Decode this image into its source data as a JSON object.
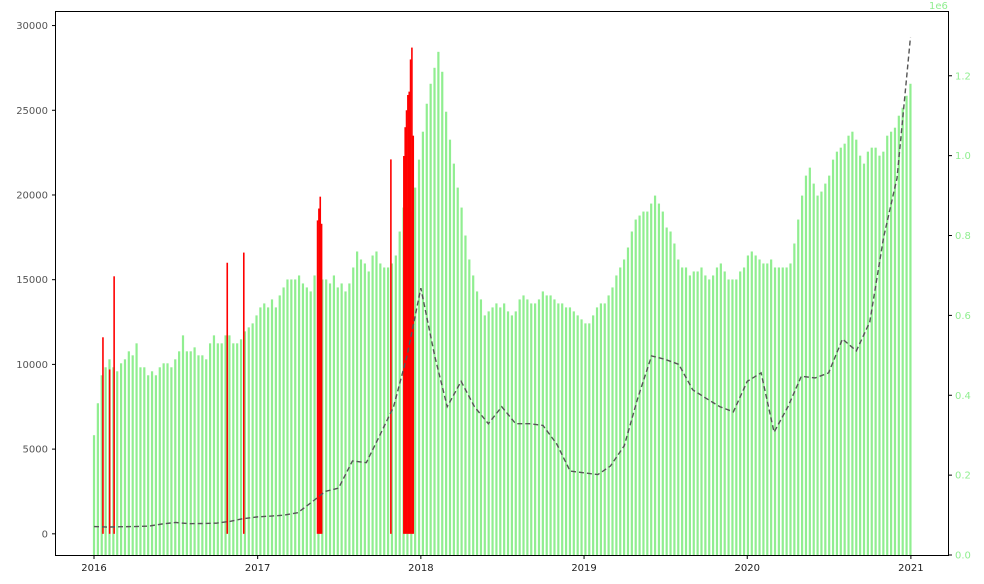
{
  "chart_data": {
    "type": "bar",
    "title": "",
    "xlabel": "",
    "ylabel": "",
    "x_range": [
      "2015-10-08",
      "2021-03-25"
    ],
    "left_axis": {
      "ylim": [
        -1250,
        30800
      ],
      "ticks": [
        0,
        5000,
        10000,
        15000,
        20000,
        25000,
        30000
      ],
      "tick_labels": [
        "0",
        "5000",
        "10000",
        "15000",
        "20000",
        "25000",
        "30000"
      ],
      "tick_color": "#555555"
    },
    "right_axis": {
      "ylim": [
        0,
        1.3597
      ],
      "ticks": [
        0.0,
        0.2,
        0.4,
        0.6,
        0.8,
        1.0,
        1.2
      ],
      "tick_labels": [
        "0.0",
        "0.2",
        "0.4",
        "0.6",
        "0.8",
        "1.0",
        "1.2"
      ],
      "offset_label": "1e6",
      "tick_color": "#90ee90"
    },
    "x_axis": {
      "ticks": [
        "2016-01-01",
        "2017-01-01",
        "2018-01-01",
        "2019-01-01",
        "2020-01-01",
        "2021-01-01"
      ],
      "tick_labels": [
        "2016",
        "2017",
        "2018",
        "2019",
        "2020",
        "2021"
      ]
    },
    "grid": false,
    "legend": "none",
    "colors": {
      "volume": "#90ee90",
      "price_up": "#ff0000",
      "price_line": "#555555"
    },
    "series": [
      {
        "type": "bar",
        "axis": "right",
        "color": "#90ee90",
        "x_start": "2016-01-01",
        "x_end": "2020-12-31",
        "values_1e6": [
          0.3,
          0.38,
          0.45,
          0.47,
          0.49,
          0.47,
          0.46,
          0.48,
          0.49,
          0.51,
          0.5,
          0.53,
          0.47,
          0.47,
          0.45,
          0.46,
          0.45,
          0.47,
          0.48,
          0.48,
          0.47,
          0.49,
          0.51,
          0.55,
          0.51,
          0.51,
          0.52,
          0.5,
          0.5,
          0.49,
          0.53,
          0.55,
          0.53,
          0.53,
          0.55,
          0.55,
          0.53,
          0.53,
          0.54,
          0.56,
          0.57,
          0.58,
          0.6,
          0.62,
          0.63,
          0.62,
          0.64,
          0.62,
          0.65,
          0.67,
          0.69,
          0.69,
          0.69,
          0.7,
          0.68,
          0.67,
          0.66,
          0.7,
          0.7,
          0.69,
          0.69,
          0.68,
          0.7,
          0.67,
          0.68,
          0.66,
          0.68,
          0.72,
          0.76,
          0.74,
          0.73,
          0.71,
          0.75,
          0.76,
          0.73,
          0.72,
          0.72,
          0.73,
          0.75,
          0.81,
          0.87,
          0.87,
          0.86,
          0.92,
          0.99,
          1.06,
          1.13,
          1.18,
          1.22,
          1.26,
          1.21,
          1.11,
          1.04,
          0.98,
          0.92,
          0.87,
          0.8,
          0.74,
          0.7,
          0.66,
          0.64,
          0.6,
          0.61,
          0.62,
          0.63,
          0.62,
          0.63,
          0.61,
          0.6,
          0.61,
          0.64,
          0.65,
          0.64,
          0.63,
          0.63,
          0.64,
          0.66,
          0.65,
          0.65,
          0.64,
          0.63,
          0.63,
          0.62,
          0.62,
          0.61,
          0.6,
          0.59,
          0.58,
          0.58,
          0.6,
          0.62,
          0.63,
          0.63,
          0.65,
          0.67,
          0.7,
          0.72,
          0.74,
          0.77,
          0.81,
          0.84,
          0.85,
          0.86,
          0.86,
          0.88,
          0.9,
          0.88,
          0.86,
          0.82,
          0.81,
          0.78,
          0.74,
          0.72,
          0.72,
          0.7,
          0.71,
          0.71,
          0.72,
          0.7,
          0.69,
          0.7,
          0.72,
          0.73,
          0.71,
          0.69,
          0.69,
          0.69,
          0.71,
          0.72,
          0.75,
          0.76,
          0.75,
          0.74,
          0.73,
          0.73,
          0.74,
          0.72,
          0.72,
          0.72,
          0.72,
          0.73,
          0.78,
          0.84,
          0.9,
          0.95,
          0.97,
          0.93,
          0.9,
          0.91,
          0.93,
          0.95,
          0.99,
          1.01,
          1.02,
          1.03,
          1.05,
          1.06,
          1.04,
          1.0,
          0.98,
          1.01,
          1.02,
          1.02,
          1.0,
          1.01,
          1.05,
          1.06,
          1.07,
          1.1,
          1.12,
          1.15,
          1.18
        ]
      },
      {
        "type": "line",
        "axis": "left",
        "name": "",
        "style": "dashed",
        "color": "#555555",
        "x": [
          "2016-01-01",
          "2016-02-01",
          "2016-03-01",
          "2016-04-01",
          "2016-05-01",
          "2016-06-01",
          "2016-07-01",
          "2016-08-01",
          "2016-09-01",
          "2016-10-01",
          "2016-11-01",
          "2016-12-01",
          "2017-01-01",
          "2017-02-01",
          "2017-03-01",
          "2017-04-01",
          "2017-05-01",
          "2017-06-01",
          "2017-07-01",
          "2017-08-01",
          "2017-09-01",
          "2017-10-01",
          "2017-11-01",
          "2017-12-01",
          "2018-01-01",
          "2018-02-01",
          "2018-03-01",
          "2018-04-01",
          "2018-05-01",
          "2018-06-01",
          "2018-07-01",
          "2018-08-01",
          "2018-09-01",
          "2018-10-01",
          "2018-11-01",
          "2018-12-01",
          "2019-01-01",
          "2019-02-01",
          "2019-03-01",
          "2019-04-01",
          "2019-05-01",
          "2019-06-01",
          "2019-07-01",
          "2019-08-01",
          "2019-09-01",
          "2019-10-01",
          "2019-11-01",
          "2019-12-01",
          "2020-01-01",
          "2020-02-01",
          "2020-03-01",
          "2020-04-01",
          "2020-05-01",
          "2020-06-01",
          "2020-07-01",
          "2020-08-01",
          "2020-09-01",
          "2020-10-01",
          "2020-11-01",
          "2020-12-01",
          "2020-12-31"
        ],
        "values": [
          430,
          400,
          420,
          430,
          450,
          580,
          670,
          600,
          610,
          630,
          740,
          900,
          1000,
          1050,
          1100,
          1250,
          1850,
          2500,
          2700,
          4300,
          4200,
          5800,
          7500,
          10500,
          14500,
          10500,
          7500,
          9000,
          7500,
          6500,
          7500,
          6500,
          6500,
          6400,
          5300,
          3700,
          3600,
          3500,
          4000,
          5200,
          8000,
          10500,
          10300,
          10000,
          8500,
          8000,
          7500,
          7200,
          9000,
          9500,
          6000,
          7500,
          9300,
          9200,
          9500,
          11500,
          10800,
          12500,
          17500,
          21000,
          29300
        ]
      },
      {
        "type": "bar",
        "axis": "left",
        "name": "",
        "color": "#ff0000",
        "x": [
          "2016-01-21",
          "2016-02-05",
          "2016-02-15",
          "2016-10-25",
          "2016-12-01",
          "2017-05-15",
          "2017-05-18",
          "2017-05-21",
          "2017-05-24",
          "2017-10-26",
          "2017-11-24",
          "2017-11-27",
          "2017-11-30",
          "2017-12-03",
          "2017-12-06",
          "2017-12-09",
          "2017-12-12",
          "2017-12-15"
        ],
        "values": [
          11600,
          9700,
          15200,
          16000,
          16600,
          18500,
          19200,
          19900,
          18300,
          22100,
          22300,
          24000,
          25000,
          25900,
          26100,
          28000,
          28700,
          23500
        ]
      }
    ]
  }
}
